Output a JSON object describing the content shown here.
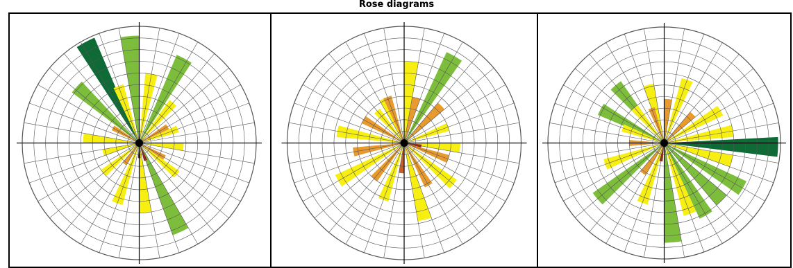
{
  "header": {
    "title": "Rose diagrams"
  },
  "colors": {
    "dark_green": "#0e6b35",
    "green": "#7dbd3c",
    "yellow": "#f7ef12",
    "orange": "#e89a2e",
    "dark_orange": "#c4622a",
    "red": "#9a1c12",
    "grid": "#555555"
  },
  "chart_data": [
    {
      "type": "polar-bar",
      "ring_max": 10,
      "sectors": 36,
      "wedges": [
        {
          "angle": -28,
          "value": 9.8,
          "color": "dark_green"
        },
        {
          "angle": -48,
          "value": 7.2,
          "color": "green"
        },
        {
          "angle": -5,
          "value": 9.2,
          "color": "green"
        },
        {
          "angle": 28,
          "value": 8.2,
          "color": "green"
        },
        {
          "angle": 155,
          "value": 8.4,
          "color": "green"
        },
        {
          "angle": -20,
          "value": 5.2,
          "color": "yellow"
        },
        {
          "angle": 10,
          "value": 6.0,
          "color": "yellow"
        },
        {
          "angle": 40,
          "value": 4.5,
          "color": "yellow"
        },
        {
          "angle": 70,
          "value": 3.5,
          "color": "yellow"
        },
        {
          "angle": 95,
          "value": 3.8,
          "color": "yellow"
        },
        {
          "angle": 175,
          "value": 6.0,
          "color": "yellow"
        },
        {
          "angle": 200,
          "value": 5.5,
          "color": "yellow"
        },
        {
          "angle": 230,
          "value": 4.0,
          "color": "yellow"
        },
        {
          "angle": 255,
          "value": 3.2,
          "color": "yellow"
        },
        {
          "angle": 275,
          "value": 4.8,
          "color": "yellow"
        },
        {
          "angle": 130,
          "value": 4.2,
          "color": "yellow"
        },
        {
          "angle": -60,
          "value": 2.6,
          "color": "orange"
        },
        {
          "angle": 60,
          "value": 2.8,
          "color": "orange"
        },
        {
          "angle": 120,
          "value": 2.5,
          "color": "orange"
        },
        {
          "angle": 215,
          "value": 2.2,
          "color": "orange"
        },
        {
          "angle": 300,
          "value": 2.4,
          "color": "orange"
        },
        {
          "angle": 160,
          "value": 1.6,
          "color": "red"
        },
        {
          "angle": 180,
          "value": 1.3,
          "color": "red"
        }
      ]
    },
    {
      "type": "polar-bar",
      "ring_max": 10,
      "sectors": 36,
      "wedges": [
        {
          "angle": 30,
          "value": 8.6,
          "color": "green"
        },
        {
          "angle": 5,
          "value": 7.0,
          "color": "yellow"
        },
        {
          "angle": -25,
          "value": 4.2,
          "color": "yellow"
        },
        {
          "angle": 70,
          "value": 4.0,
          "color": "yellow"
        },
        {
          "angle": 95,
          "value": 4.8,
          "color": "yellow"
        },
        {
          "angle": 130,
          "value": 5.5,
          "color": "yellow"
        },
        {
          "angle": 165,
          "value": 6.8,
          "color": "yellow"
        },
        {
          "angle": 200,
          "value": 5.2,
          "color": "yellow"
        },
        {
          "angle": 240,
          "value": 6.5,
          "color": "yellow"
        },
        {
          "angle": 280,
          "value": 5.8,
          "color": "yellow"
        },
        {
          "angle": 320,
          "value": 3.6,
          "color": "yellow"
        },
        {
          "angle": 45,
          "value": 4.5,
          "color": "orange"
        },
        {
          "angle": 110,
          "value": 4.0,
          "color": "orange"
        },
        {
          "angle": 150,
          "value": 4.2,
          "color": "orange"
        },
        {
          "angle": 220,
          "value": 4.0,
          "color": "orange"
        },
        {
          "angle": 260,
          "value": 4.4,
          "color": "orange"
        },
        {
          "angle": 300,
          "value": 4.0,
          "color": "orange"
        },
        {
          "angle": 340,
          "value": 4.2,
          "color": "orange"
        },
        {
          "angle": 15,
          "value": 4.0,
          "color": "orange"
        },
        {
          "angle": 185,
          "value": 2.6,
          "color": "dark_orange"
        },
        {
          "angle": 100,
          "value": 1.5,
          "color": "red"
        }
      ]
    },
    {
      "type": "polar-bar",
      "ring_max": 10,
      "sectors": 36,
      "wedges": [
        {
          "angle": 92,
          "value": 9.8,
          "color": "dark_green"
        },
        {
          "angle": -40,
          "value": 6.5,
          "color": "green"
        },
        {
          "angle": -62,
          "value": 6.2,
          "color": "green"
        },
        {
          "angle": 120,
          "value": 7.8,
          "color": "green"
        },
        {
          "angle": 135,
          "value": 7.0,
          "color": "green"
        },
        {
          "angle": 150,
          "value": 7.2,
          "color": "green"
        },
        {
          "angle": 175,
          "value": 8.6,
          "color": "green"
        },
        {
          "angle": 230,
          "value": 7.5,
          "color": "green"
        },
        {
          "angle": 20,
          "value": 5.8,
          "color": "yellow"
        },
        {
          "angle": -15,
          "value": 5.2,
          "color": "yellow"
        },
        {
          "angle": 60,
          "value": 5.6,
          "color": "yellow"
        },
        {
          "angle": 80,
          "value": 6.0,
          "color": "yellow"
        },
        {
          "angle": 105,
          "value": 6.0,
          "color": "yellow"
        },
        {
          "angle": 160,
          "value": 6.5,
          "color": "yellow"
        },
        {
          "angle": 200,
          "value": 5.5,
          "color": "yellow"
        },
        {
          "angle": 250,
          "value": 5.4,
          "color": "yellow"
        },
        {
          "angle": 290,
          "value": 3.8,
          "color": "yellow"
        },
        {
          "angle": 320,
          "value": 4.0,
          "color": "yellow"
        },
        {
          "angle": 45,
          "value": 3.5,
          "color": "orange"
        },
        {
          "angle": 215,
          "value": 3.2,
          "color": "orange"
        },
        {
          "angle": 270,
          "value": 3.0,
          "color": "orange"
        },
        {
          "angle": 340,
          "value": 3.2,
          "color": "orange"
        },
        {
          "angle": 5,
          "value": 3.8,
          "color": "orange"
        },
        {
          "angle": 190,
          "value": 1.6,
          "color": "red"
        }
      ]
    }
  ]
}
